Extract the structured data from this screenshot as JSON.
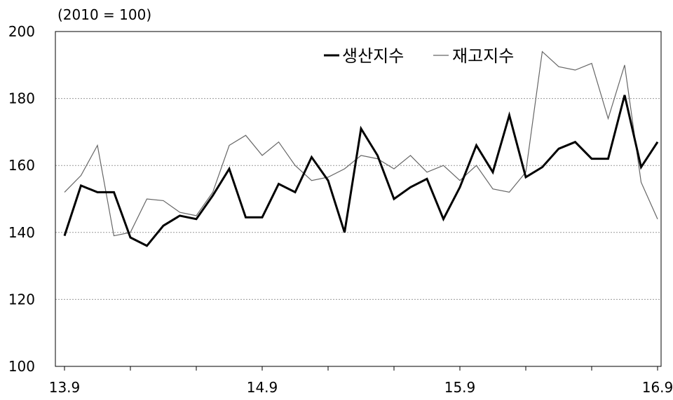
{
  "chart_data": {
    "type": "line",
    "unit_label": "(2010 = 100)",
    "ylim": [
      100,
      200
    ],
    "yticks": [
      100,
      120,
      140,
      160,
      180,
      200
    ],
    "xtick_labels": [
      "13.9",
      "14.9",
      "15.9",
      "16.9"
    ],
    "grid": true,
    "legend_position": "top-right",
    "x": [
      "13.9",
      "13.10",
      "13.11",
      "13.12",
      "14.1",
      "14.2",
      "14.3",
      "14.4",
      "14.5",
      "14.6",
      "14.7",
      "14.8",
      "14.9",
      "14.10",
      "14.11",
      "14.12",
      "15.1",
      "15.2",
      "15.3",
      "15.4",
      "15.5",
      "15.6",
      "15.7",
      "15.8",
      "15.9",
      "15.10",
      "15.11",
      "15.12",
      "16.1",
      "16.2",
      "16.3",
      "16.4",
      "16.5",
      "16.6",
      "16.7",
      "16.8",
      "16.9"
    ],
    "series": [
      {
        "name": "생산지수",
        "color": "#000000",
        "values": [
          139,
          154,
          152,
          152,
          138.5,
          136,
          142,
          145,
          144,
          151,
          159,
          144.5,
          144.5,
          154.5,
          152,
          162.5,
          155.5,
          140,
          171,
          163,
          150,
          153.5,
          156,
          144,
          153.5,
          166,
          158,
          175,
          156.5,
          159.5,
          165,
          167,
          162,
          162,
          181,
          159.5,
          167
        ]
      },
      {
        "name": "재고지수",
        "color": "#666666",
        "values": [
          152,
          157,
          166,
          139,
          140,
          150,
          149.5,
          146,
          145,
          152,
          166,
          169,
          163,
          167,
          160,
          155.5,
          156.5,
          159,
          163,
          162,
          159,
          163,
          158,
          160,
          155.5,
          160,
          153,
          152,
          158,
          194,
          189.5,
          188.5,
          190.5,
          174,
          190,
          155,
          144
        ]
      }
    ]
  }
}
